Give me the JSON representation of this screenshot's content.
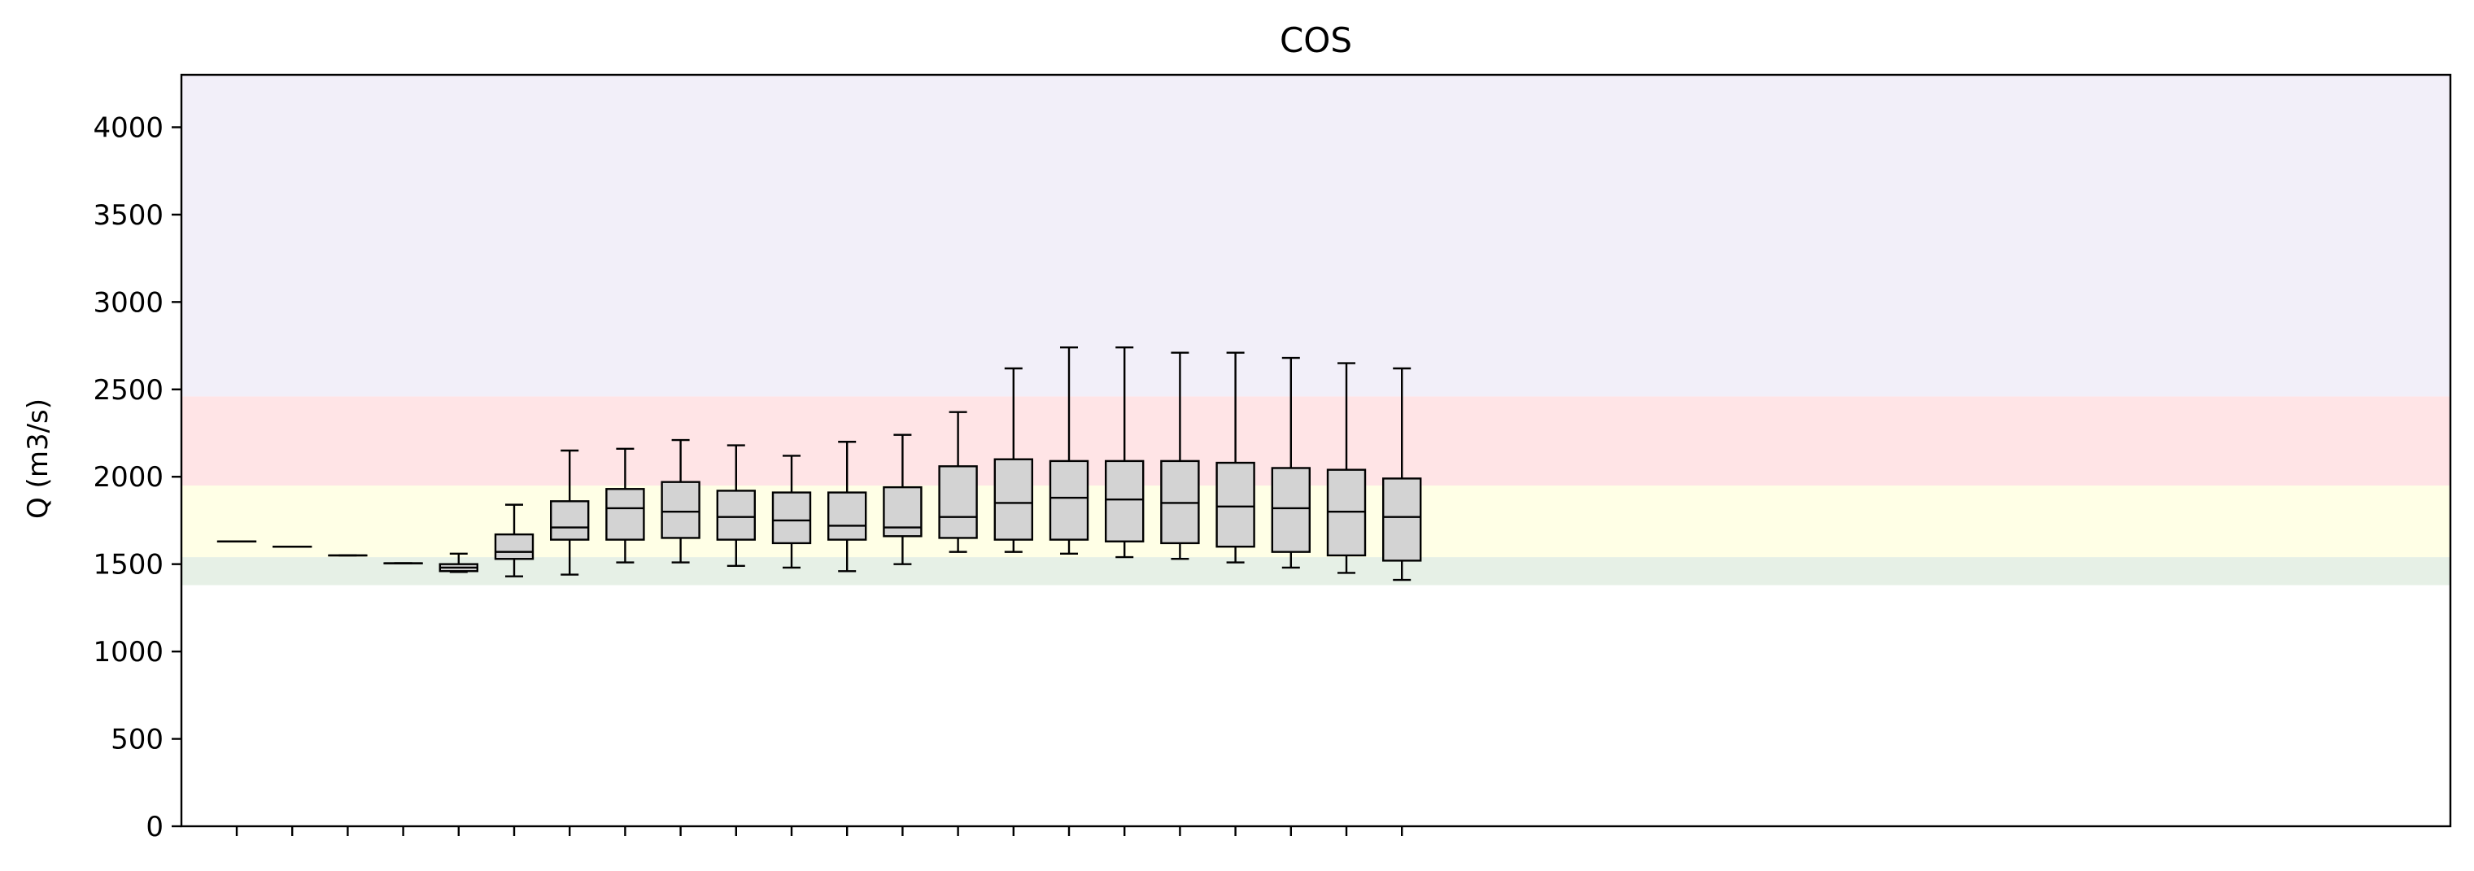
{
  "chart_data": {
    "type": "box",
    "title": "COS",
    "ylabel": "Q (m3/s)",
    "xlabel": "",
    "ylim": [
      0,
      4300
    ],
    "yticks": [
      0,
      500,
      1000,
      1500,
      2000,
      2500,
      3000,
      3500,
      4000
    ],
    "x_tick_count": 22,
    "grid": false,
    "bands": [
      {
        "from": 1380,
        "to": 1540,
        "color": "#e6f0e6"
      },
      {
        "from": 1540,
        "to": 1950,
        "color": "#ffffe6"
      },
      {
        "from": 1950,
        "to": 2460,
        "color": "#ffe4e6"
      },
      {
        "from": 2460,
        "to": 4300,
        "color": "#f2eff9"
      }
    ],
    "box_fill": "#d3d3d3",
    "boxes": [
      {
        "min": 1630,
        "q1": 1630,
        "median": 1630,
        "q3": 1630,
        "max": 1630
      },
      {
        "min": 1600,
        "q1": 1600,
        "median": 1600,
        "q3": 1600,
        "max": 1600
      },
      {
        "min": 1550,
        "q1": 1550,
        "median": 1550,
        "q3": 1550,
        "max": 1550
      },
      {
        "min": 1505,
        "q1": 1505,
        "median": 1505,
        "q3": 1505,
        "max": 1505
      },
      {
        "min": 1455,
        "q1": 1460,
        "median": 1480,
        "q3": 1500,
        "max": 1560
      },
      {
        "min": 1430,
        "q1": 1530,
        "median": 1570,
        "q3": 1670,
        "max": 1840
      },
      {
        "min": 1440,
        "q1": 1640,
        "median": 1710,
        "q3": 1860,
        "max": 2150
      },
      {
        "min": 1510,
        "q1": 1640,
        "median": 1820,
        "q3": 1930,
        "max": 2160
      },
      {
        "min": 1510,
        "q1": 1650,
        "median": 1800,
        "q3": 1970,
        "max": 2210
      },
      {
        "min": 1490,
        "q1": 1640,
        "median": 1770,
        "q3": 1920,
        "max": 2180
      },
      {
        "min": 1480,
        "q1": 1620,
        "median": 1750,
        "q3": 1910,
        "max": 2120
      },
      {
        "min": 1460,
        "q1": 1640,
        "median": 1720,
        "q3": 1910,
        "max": 2200
      },
      {
        "min": 1500,
        "q1": 1660,
        "median": 1710,
        "q3": 1940,
        "max": 2240
      },
      {
        "min": 1570,
        "q1": 1650,
        "median": 1770,
        "q3": 2060,
        "max": 2370
      },
      {
        "min": 1570,
        "q1": 1640,
        "median": 1850,
        "q3": 2100,
        "max": 2620
      },
      {
        "min": 1560,
        "q1": 1640,
        "median": 1880,
        "q3": 2090,
        "max": 2740
      },
      {
        "min": 1540,
        "q1": 1630,
        "median": 1870,
        "q3": 2090,
        "max": 2740
      },
      {
        "min": 1530,
        "q1": 1620,
        "median": 1850,
        "q3": 2090,
        "max": 2710
      },
      {
        "min": 1510,
        "q1": 1600,
        "median": 1830,
        "q3": 2080,
        "max": 2710
      },
      {
        "min": 1480,
        "q1": 1570,
        "median": 1820,
        "q3": 2050,
        "max": 2680
      },
      {
        "min": 1450,
        "q1": 1550,
        "median": 1800,
        "q3": 2040,
        "max": 2650
      },
      {
        "min": 1410,
        "q1": 1520,
        "median": 1770,
        "q3": 1990,
        "max": 2620
      }
    ],
    "x_slots": 40
  }
}
